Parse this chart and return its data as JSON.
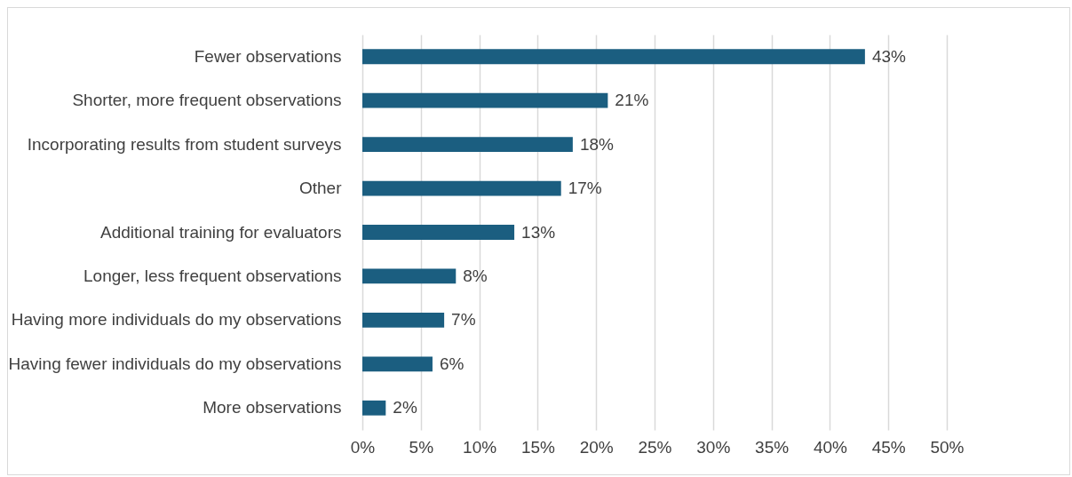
{
  "chart_data": {
    "type": "bar",
    "orientation": "horizontal",
    "categories": [
      "Fewer observations",
      "Shorter, more frequent observations",
      "Incorporating results from student surveys",
      "Other",
      "Additional training for evaluators",
      "Longer, less frequent observations",
      "Having more individuals do my observations",
      "Having fewer individuals do my observations",
      "More observations"
    ],
    "values": [
      43,
      21,
      18,
      17,
      13,
      8,
      7,
      6,
      2
    ],
    "value_labels": [
      "43%",
      "21%",
      "18%",
      "17%",
      "13%",
      "8%",
      "7%",
      "6%",
      "2%"
    ],
    "color": "#1b5e80",
    "xlim": [
      0,
      50
    ],
    "xticks": [
      {
        "value": 0,
        "label": "0%"
      },
      {
        "value": 5,
        "label": "5%"
      },
      {
        "value": 10,
        "label": "10%"
      },
      {
        "value": 15,
        "label": "15%"
      },
      {
        "value": 20,
        "label": "20%"
      },
      {
        "value": 25,
        "label": "25%"
      },
      {
        "value": 30,
        "label": "30%"
      },
      {
        "value": 35,
        "label": "35%"
      },
      {
        "value": 40,
        "label": "40%"
      },
      {
        "value": 45,
        "label": "45%"
      },
      {
        "value": 50,
        "label": "50%"
      }
    ],
    "grid": "x"
  }
}
